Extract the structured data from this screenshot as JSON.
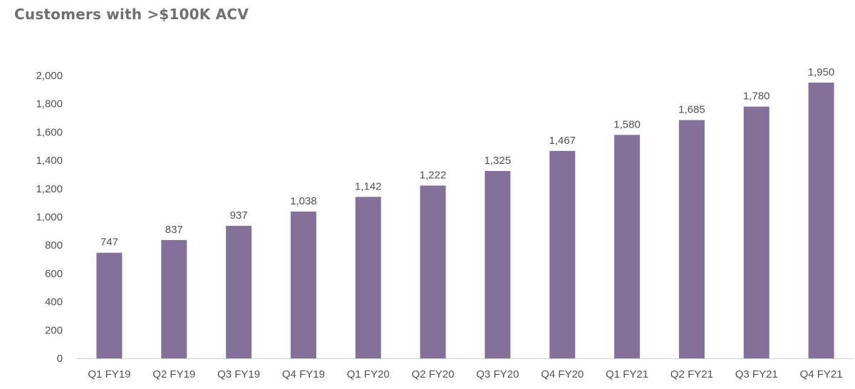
{
  "chart_data": {
    "type": "bar",
    "title": "Customers with >$100K ACV",
    "xlabel": "",
    "ylabel": "",
    "categories": [
      "Q1 FY19",
      "Q2 FY19",
      "Q3 FY19",
      "Q4 FY19",
      "Q1 FY20",
      "Q2 FY20",
      "Q3 FY20",
      "Q4 FY20",
      "Q1 FY21",
      "Q2 FY21",
      "Q3 FY21",
      "Q4 FY21"
    ],
    "values": [
      747,
      837,
      937,
      1038,
      1142,
      1222,
      1325,
      1467,
      1580,
      1685,
      1780,
      1950
    ],
    "value_labels": [
      "747",
      "837",
      "937",
      "1,038",
      "1,142",
      "1,222",
      "1,325",
      "1,467",
      "1,580",
      "1,685",
      "1,780",
      "1,950"
    ],
    "ylim": [
      0,
      2000
    ],
    "yticks": [
      0,
      200,
      400,
      600,
      800,
      1000,
      1200,
      1400,
      1600,
      1800,
      2000
    ],
    "ytick_labels": [
      "0",
      "200",
      "400",
      "600",
      "800",
      "1,000",
      "1,200",
      "1,400",
      "1,600",
      "1,800",
      "2,000"
    ],
    "grid": false,
    "legend": "none",
    "bar_color": "#84719a",
    "axis_color": "#d0d0d0"
  }
}
